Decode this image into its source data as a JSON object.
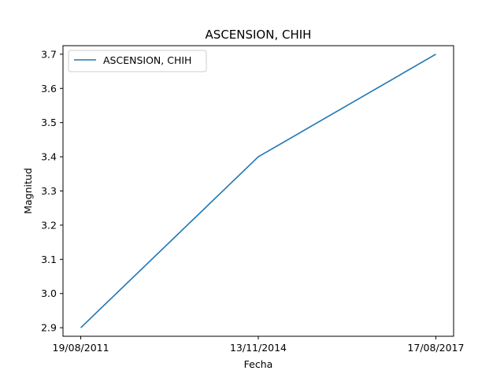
{
  "chart_data": {
    "type": "line",
    "title": "ASCENSION, CHIH",
    "xlabel": "Fecha",
    "ylabel": "Magnitud",
    "categories": [
      "19/08/2011",
      "13/11/2014",
      "17/08/2017"
    ],
    "series": [
      {
        "name": "ASCENSION, CHIH",
        "values": [
          2.9,
          3.4,
          3.7
        ],
        "color": "#1f77b4"
      }
    ],
    "ylim": [
      2.875,
      3.725
    ],
    "yticks": [
      2.9,
      3.0,
      3.1,
      3.2,
      3.3,
      3.4,
      3.5,
      3.6,
      3.7
    ],
    "ytick_labels": [
      "2.9",
      "3.0",
      "3.1",
      "3.2",
      "3.3",
      "3.4",
      "3.5",
      "3.6",
      "3.7"
    ],
    "grid": false,
    "legend": "top-left"
  }
}
